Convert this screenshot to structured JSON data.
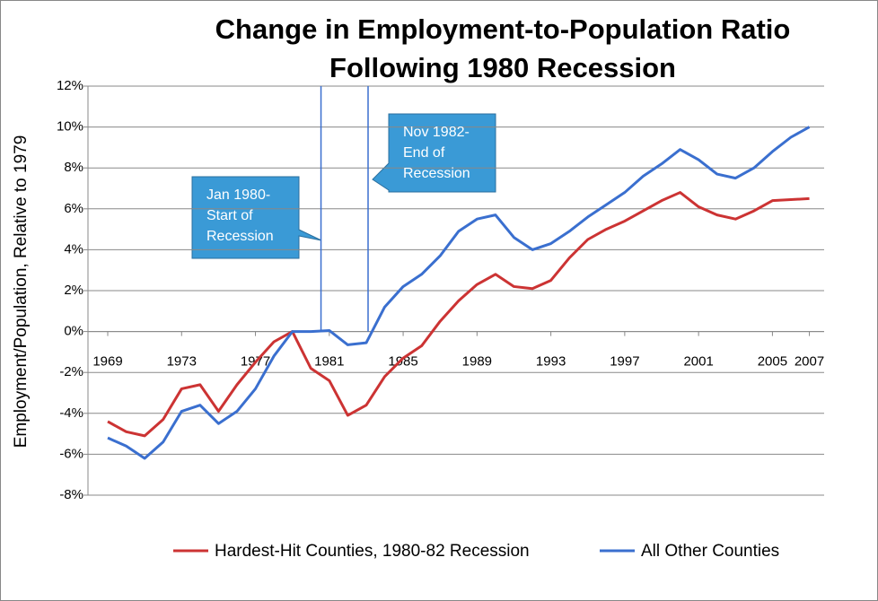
{
  "chart_data": {
    "type": "line",
    "title": [
      "Change in Employment-to-Population Ratio",
      "Following 1980 Recession"
    ],
    "y_label": "Employment/Population, Relative to 1979",
    "x": [
      1969,
      1970,
      1971,
      1972,
      1973,
      1974,
      1975,
      1976,
      1977,
      1978,
      1979,
      1980,
      1981,
      1982,
      1983,
      1984,
      1985,
      1986,
      1987,
      1988,
      1989,
      1990,
      1991,
      1992,
      1993,
      1994,
      1995,
      1996,
      1997,
      1998,
      1999,
      2000,
      2001,
      2002,
      2003,
      2004,
      2005,
      2006,
      2007
    ],
    "series": [
      {
        "name": "Hardest-Hit Counties, 1980-82 Recession",
        "color": "#cc3333",
        "values": [
          -4.4,
          -4.9,
          -5.1,
          -4.3,
          -2.8,
          -2.6,
          -3.9,
          -2.6,
          -1.5,
          -0.5,
          0,
          -1.8,
          -2.4,
          -4.1,
          -3.6,
          -2.2,
          -1.3,
          -0.7,
          0.5,
          1.5,
          2.3,
          2.8,
          2.2,
          2.1,
          2.5,
          3.6,
          4.5,
          5.0,
          5.4,
          5.9,
          6.4,
          6.8,
          6.1,
          5.7,
          5.5,
          5.9,
          6.4,
          6.45,
          6.5
        ]
      },
      {
        "name": "All Other Counties",
        "color": "#3a6fcf",
        "values": [
          -5.2,
          -5.6,
          -6.2,
          -5.4,
          -3.9,
          -3.6,
          -4.5,
          -3.9,
          -2.8,
          -1.2,
          0,
          0,
          0.05,
          -0.65,
          -0.55,
          1.2,
          2.2,
          2.8,
          3.7,
          4.9,
          5.5,
          5.7,
          4.6,
          4.0,
          4.3,
          4.9,
          5.6,
          6.2,
          6.8,
          7.6,
          8.2,
          8.9,
          8.4,
          7.7,
          7.5,
          8.0,
          8.8,
          9.5,
          10.0
        ]
      }
    ],
    "xlim": [
      1967.93,
      2007.8
    ],
    "xticks": [
      1969,
      1973,
      1977,
      1981,
      1985,
      1989,
      1993,
      1997,
      2001,
      2005,
      2007
    ],
    "ylim": [
      -8,
      12
    ],
    "yticks": [
      {
        "value": -8,
        "label": "-8%"
      },
      {
        "value": -6,
        "label": "-6%"
      },
      {
        "value": -4,
        "label": "-4%"
      },
      {
        "value": -2,
        "label": "-2%"
      },
      {
        "value": 0,
        "label": "0%"
      },
      {
        "value": 2,
        "label": "2%"
      },
      {
        "value": 4,
        "label": "4%"
      },
      {
        "value": 6,
        "label": "6%"
      },
      {
        "value": 8,
        "label": "8%"
      },
      {
        "value": 10,
        "label": "10%"
      },
      {
        "value": 12,
        "label": "12%"
      }
    ],
    "grid": true,
    "markers": [
      {
        "x": 1980.55,
        "text": [
          "Jan 1980-",
          "Start of",
          "Recession"
        ]
      },
      {
        "x": 1983.1,
        "text": [
          "Nov 1982-",
          "End of",
          "Recession"
        ]
      }
    ],
    "marker_color": "#3a6fcf",
    "legend": "bottom"
  }
}
